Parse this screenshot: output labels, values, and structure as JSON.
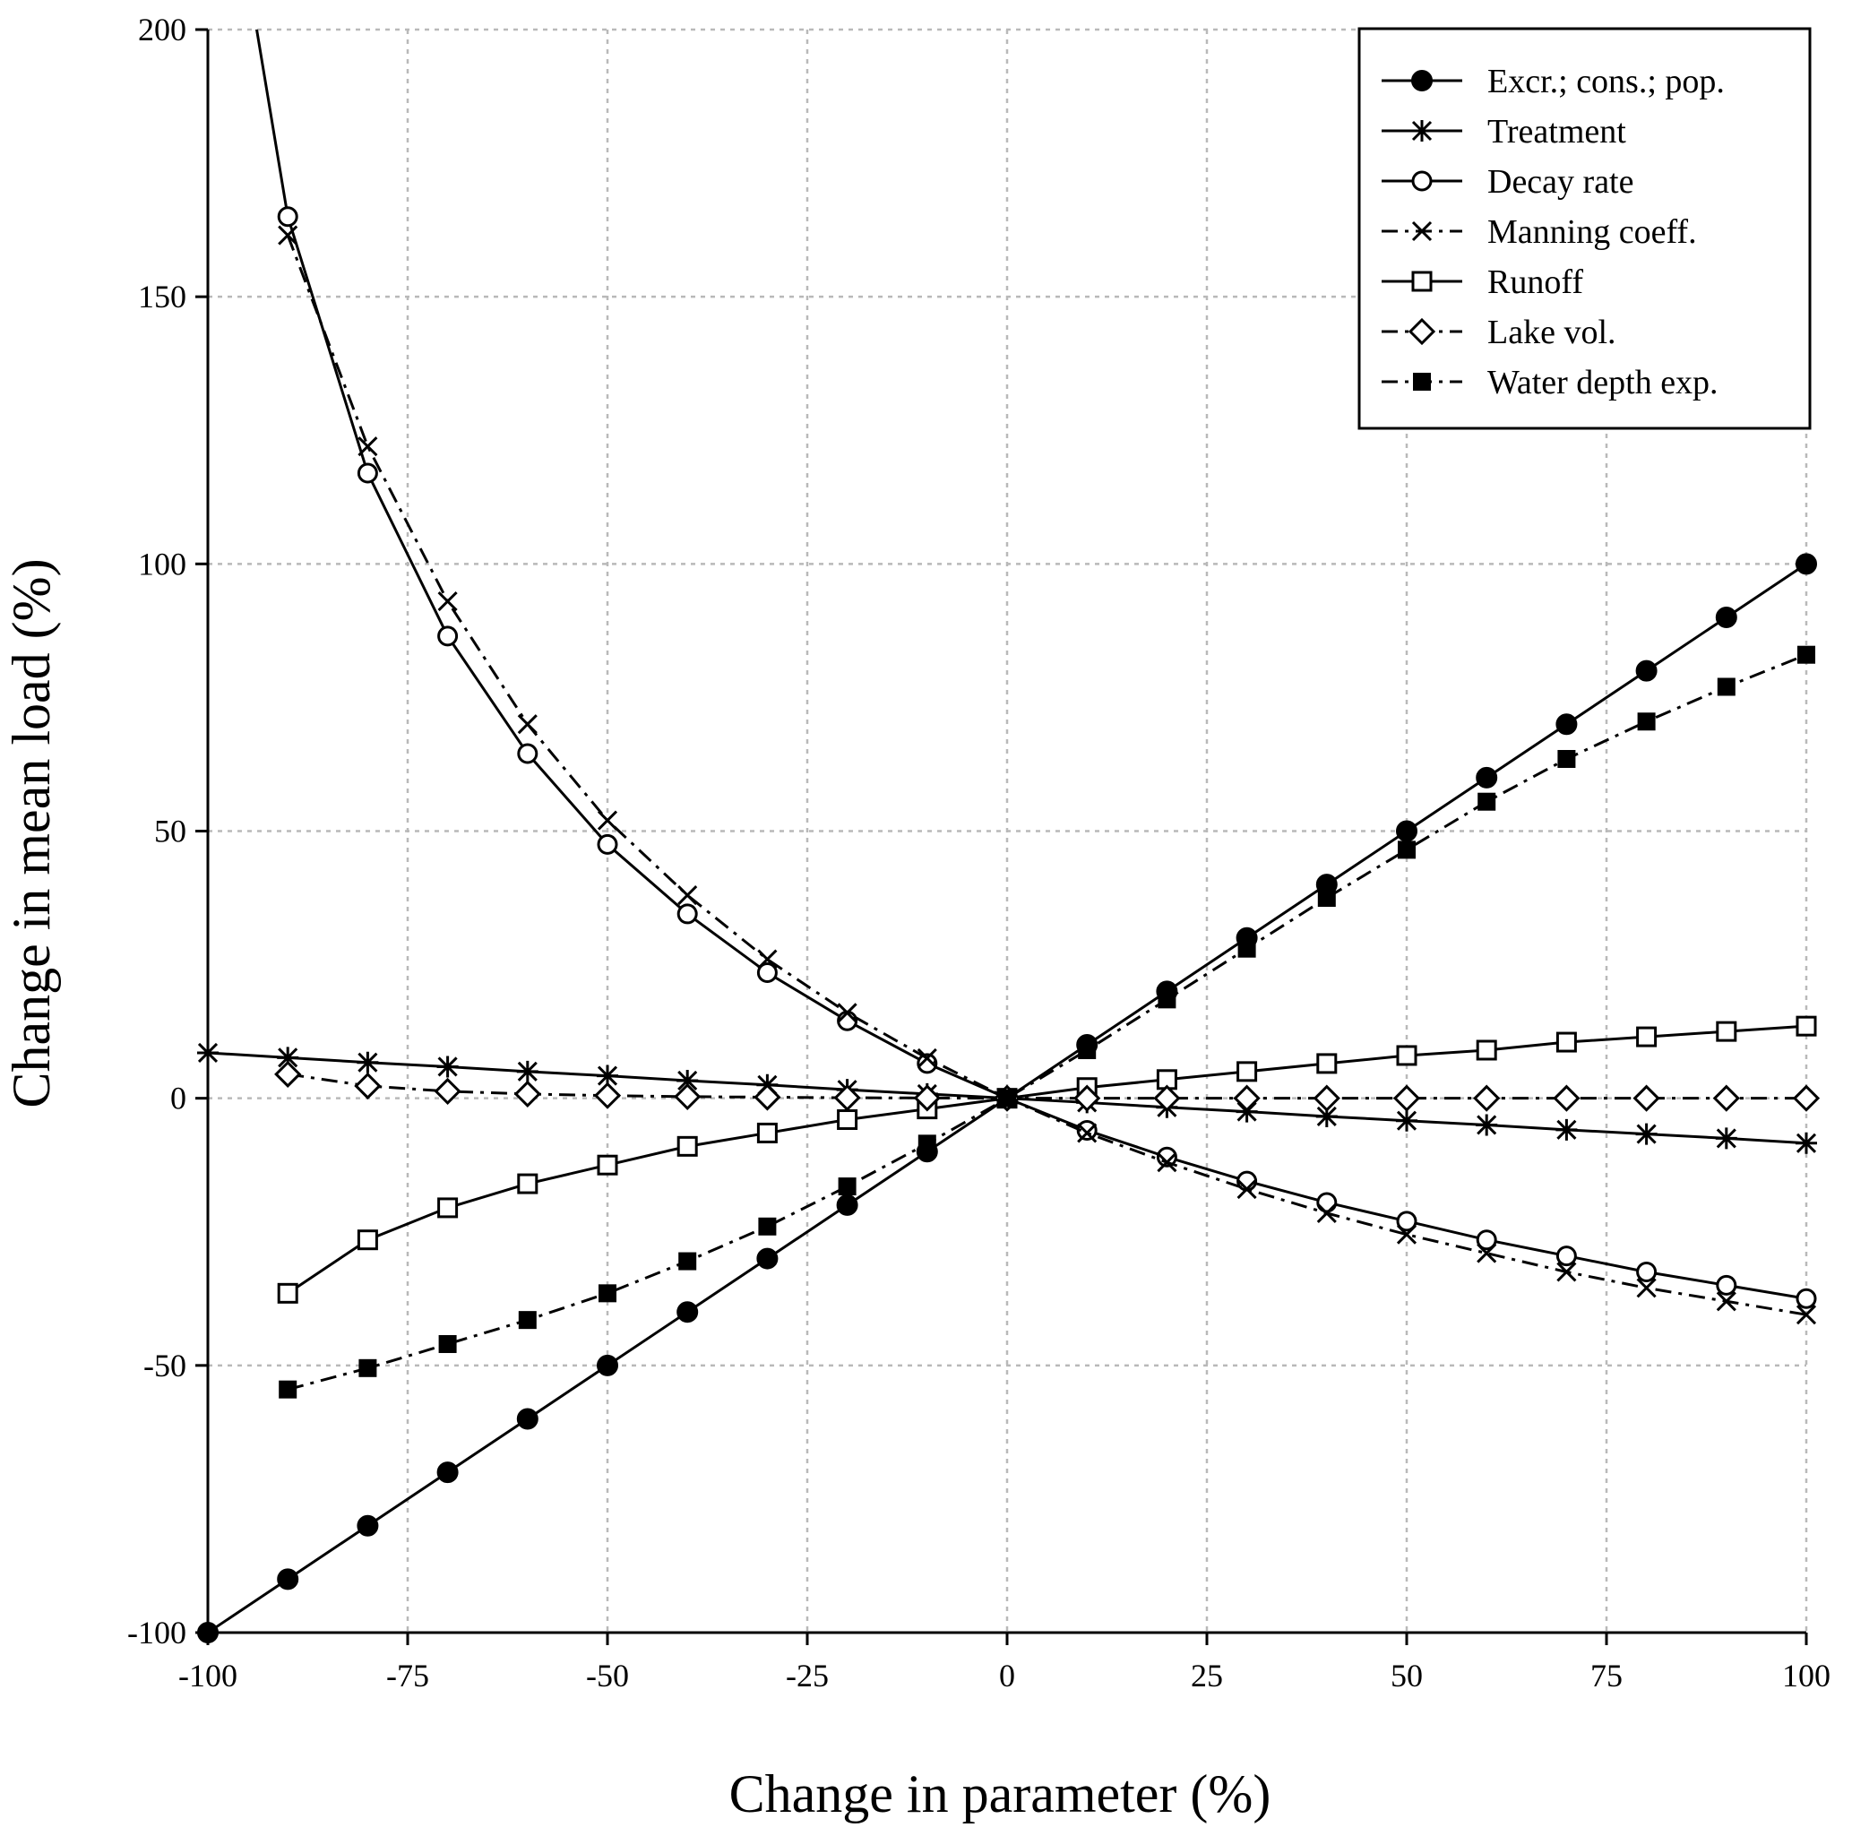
{
  "chart_data": {
    "type": "line",
    "title": "",
    "xlabel": "Change in parameter (%)",
    "ylabel": "Change in mean load (%)",
    "xlim": [
      -100,
      100
    ],
    "ylim": [
      -100,
      200
    ],
    "xticks": [
      -100,
      -75,
      -50,
      -25,
      0,
      25,
      50,
      75,
      100
    ],
    "yticks": [
      -100,
      -50,
      0,
      50,
      100,
      150,
      200
    ],
    "xtick_labels": [
      "-100",
      "-75",
      "-50",
      "-25",
      "0",
      "25",
      "50",
      "75",
      "100"
    ],
    "ytick_labels": [
      "-100",
      "-50",
      "0",
      "50",
      "100",
      "150",
      "200"
    ],
    "grid": true,
    "legend_position": "top-right",
    "series": [
      {
        "name": "Excr.; cons.; pop.",
        "marker": "filled-circle",
        "line": "solid",
        "x": [
          -100,
          -90,
          -80,
          -70,
          -60,
          -50,
          -40,
          -30,
          -20,
          -10,
          0,
          10,
          20,
          30,
          40,
          50,
          60,
          70,
          80,
          90,
          100
        ],
        "y": [
          -100,
          -90,
          -80,
          -70,
          -60,
          -50,
          -40,
          -30,
          -20,
          -10,
          0,
          10,
          20,
          30,
          40,
          50,
          60,
          70,
          80,
          90,
          100
        ]
      },
      {
        "name": "Treatment",
        "marker": "asterisk",
        "line": "solid",
        "x": [
          -100,
          -90,
          -80,
          -70,
          -60,
          -50,
          -40,
          -30,
          -20,
          -10,
          0,
          10,
          20,
          30,
          40,
          50,
          60,
          70,
          80,
          90,
          100
        ],
        "y": [
          8.5,
          7.6,
          6.7,
          5.9,
          5.0,
          4.2,
          3.3,
          2.5,
          1.6,
          0.8,
          0,
          -0.8,
          -1.7,
          -2.5,
          -3.4,
          -4.2,
          -5.0,
          -5.9,
          -6.7,
          -7.5,
          -8.4
        ]
      },
      {
        "name": "Decay rate",
        "marker": "open-circle",
        "line": "solid",
        "x": [
          -90,
          -80,
          -70,
          -60,
          -50,
          -40,
          -30,
          -20,
          -10,
          0,
          10,
          20,
          30,
          40,
          50,
          60,
          70,
          80,
          90,
          100
        ],
        "y": [
          165,
          117,
          86.5,
          64.5,
          47.5,
          34.5,
          23.5,
          14.5,
          6.5,
          0,
          -6,
          -11,
          -15.5,
          -19.5,
          -23,
          -26.5,
          -29.5,
          -32.5,
          -35,
          -37.5
        ]
      },
      {
        "name": "Manning coeff.",
        "marker": "x-cross",
        "line": "dash-dot",
        "x": [
          -90,
          -80,
          -70,
          -60,
          -50,
          -40,
          -30,
          -20,
          -10,
          0,
          10,
          20,
          30,
          40,
          50,
          60,
          70,
          80,
          90,
          100
        ],
        "y": [
          161.5,
          122,
          93,
          70,
          52,
          38,
          26,
          16,
          7.5,
          0,
          -6.5,
          -12,
          -17,
          -21.5,
          -25.5,
          -29,
          -32.5,
          -35.5,
          -38,
          -40.5
        ]
      },
      {
        "name": "Runoff",
        "marker": "open-square",
        "line": "solid",
        "x": [
          -90,
          -80,
          -70,
          -60,
          -50,
          -40,
          -30,
          -20,
          -10,
          0,
          10,
          20,
          30,
          40,
          50,
          60,
          70,
          80,
          90,
          100
        ],
        "y": [
          -36.5,
          -26.5,
          -20.5,
          -16,
          -12.5,
          -9,
          -6.5,
          -4,
          -2,
          0,
          2,
          3.5,
          5,
          6.5,
          8,
          9,
          10.5,
          11.5,
          12.5,
          13.5
        ]
      },
      {
        "name": "Lake vol.",
        "marker": "open-diamond",
        "line": "dash-dot",
        "x": [
          -90,
          -80,
          -70,
          -60,
          -50,
          -40,
          -30,
          -20,
          -10,
          0,
          10,
          20,
          30,
          40,
          50,
          60,
          70,
          80,
          90,
          100
        ],
        "y": [
          4.5,
          2.3,
          1.3,
          0.8,
          0.5,
          0.3,
          0.2,
          0.1,
          0.05,
          0,
          0,
          0,
          0,
          0,
          0,
          0,
          0,
          0,
          0,
          0
        ]
      },
      {
        "name": "Water depth exp.",
        "marker": "filled-square",
        "line": "dash-dot",
        "x": [
          -90,
          -80,
          -70,
          -60,
          -50,
          -40,
          -30,
          -20,
          -10,
          0,
          10,
          20,
          30,
          40,
          50,
          60,
          70,
          80,
          90,
          100
        ],
        "y": [
          -54.5,
          -50.5,
          -46,
          -41.5,
          -36.5,
          -30.5,
          -24,
          -16.5,
          -8.5,
          0,
          9,
          18.5,
          28,
          37.5,
          46.5,
          55.5,
          63.5,
          70.5,
          77,
          83
        ]
      }
    ]
  }
}
